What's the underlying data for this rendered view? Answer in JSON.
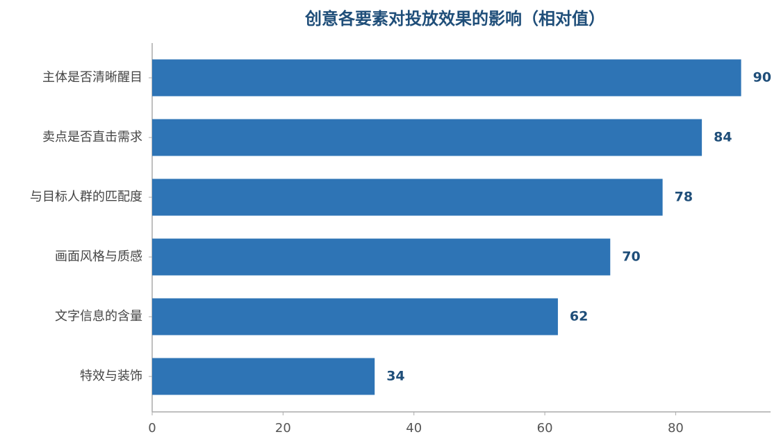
{
  "chart_data": {
    "type": "hbar",
    "title": "创意各要素对投放效果的影响（相对值）",
    "categories": [
      "主体是否清晰醒目",
      "卖点是否直击需求",
      "与目标人群的匹配度",
      "画面风格与质感",
      "文字信息的含量",
      "特效与装饰"
    ],
    "values": [
      90,
      84,
      78,
      70,
      62,
      34
    ],
    "color": "#2e74b5",
    "xlim": [
      0,
      94.5
    ],
    "xticks": [
      0,
      20,
      40,
      60,
      80
    ],
    "grid": false
  }
}
